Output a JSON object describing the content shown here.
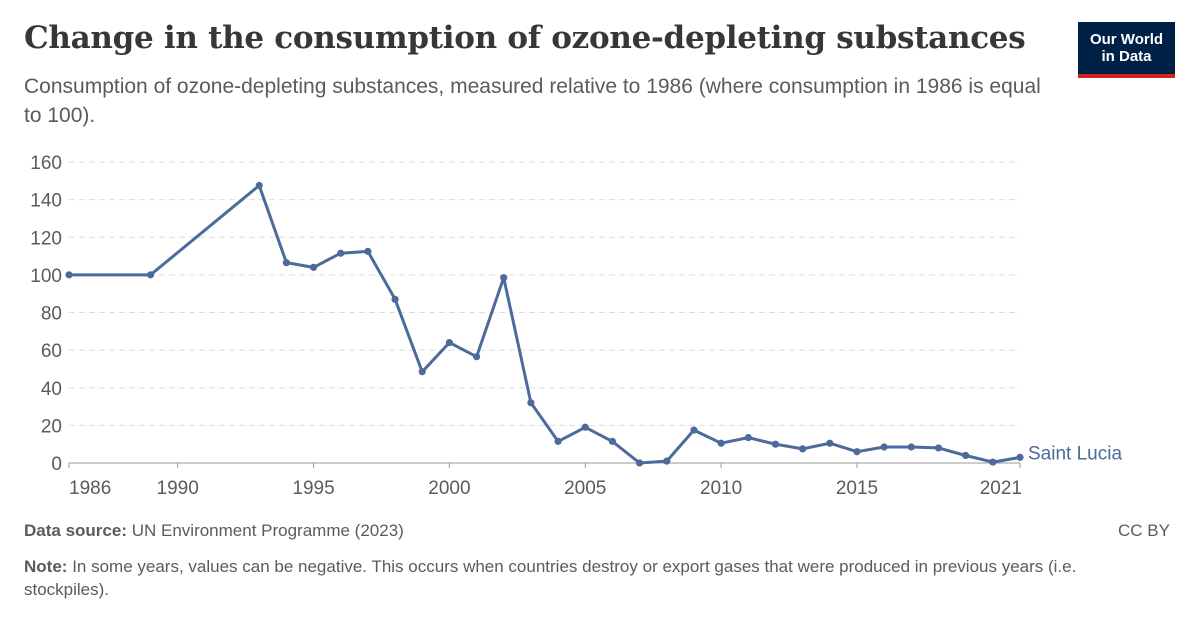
{
  "header": {
    "title": "Change in the consumption of ozone-depleting substances",
    "subtitle": "Consumption of ozone-depleting substances, measured relative to 1986 (where consumption in 1986 is equal to 100).",
    "logo_line1": "Our World",
    "logo_line2": "in Data"
  },
  "footer": {
    "source_label": "Data source:",
    "source_text": "UN Environment Programme (2023)",
    "license": "CC BY",
    "note_label": "Note:",
    "note_text": "In some years, values can be negative. This occurs when countries destroy or export gases that were produced in previous years (i.e. stockpiles)."
  },
  "colors": {
    "series": "#4c6a9c",
    "grid": "#dddddd",
    "axis": "#999999",
    "text": "#5b5b5b"
  },
  "chart_data": {
    "type": "line",
    "title": "Change in the consumption of ozone-depleting substances",
    "xlabel": "",
    "ylabel": "",
    "xlim": [
      1986,
      2021
    ],
    "ylim": [
      0,
      160
    ],
    "xticks": [
      1986,
      1990,
      1995,
      2000,
      2005,
      2010,
      2015,
      2021
    ],
    "yticks": [
      0,
      20,
      40,
      60,
      80,
      100,
      120,
      140,
      160
    ],
    "grid": "horizontal dashed",
    "series": [
      {
        "name": "Saint Lucia",
        "x": [
          1986,
          1989,
          1993,
          1994,
          1995,
          1996,
          1997,
          1998,
          1999,
          2000,
          2001,
          2002,
          2003,
          2004,
          2005,
          2006,
          2007,
          2008,
          2009,
          2010,
          2011,
          2012,
          2013,
          2014,
          2015,
          2016,
          2017,
          2018,
          2019,
          2020,
          2021
        ],
        "y": [
          100,
          100,
          147.5,
          106.5,
          104,
          111.5,
          112.5,
          87,
          48.5,
          64,
          56.5,
          98.5,
          32,
          11.5,
          19,
          11.5,
          0,
          1,
          17.5,
          10.5,
          13.5,
          10,
          7.5,
          10.5,
          6,
          8.5,
          8.5,
          8,
          4,
          0.5,
          3
        ]
      }
    ]
  }
}
